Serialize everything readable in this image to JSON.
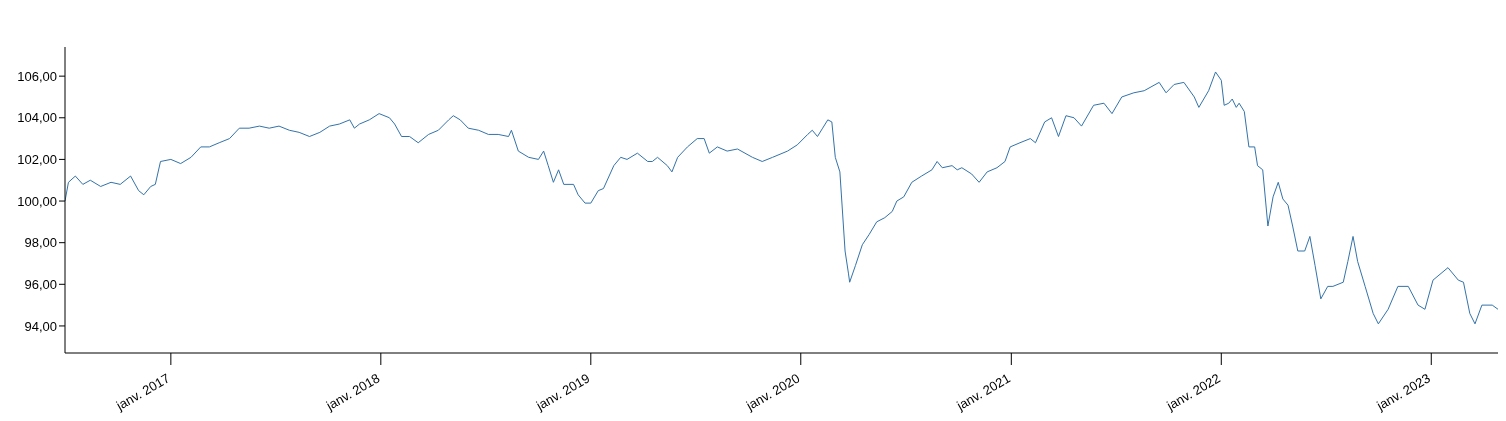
{
  "chart_data": {
    "type": "line",
    "x": [
      "2016-07-01",
      "2016-07-07",
      "2016-07-19",
      "2016-08-01",
      "2016-08-14",
      "2016-09-01",
      "2016-09-19",
      "2016-10-05",
      "2016-10-23",
      "2016-11-06",
      "2016-11-15",
      "2016-11-27",
      "2016-12-05",
      "2016-12-14",
      "2017-01-01",
      "2017-01-18",
      "2017-02-05",
      "2017-02-22",
      "2017-03-09",
      "2017-03-26",
      "2017-04-13",
      "2017-04-30",
      "2017-05-17",
      "2017-06-04",
      "2017-06-21",
      "2017-07-08",
      "2017-07-26",
      "2017-08-12",
      "2017-08-30",
      "2017-09-17",
      "2017-10-04",
      "2017-10-21",
      "2017-11-08",
      "2017-11-16",
      "2017-11-25",
      "2017-12-12",
      "2017-12-29",
      "2018-01-16",
      "2018-01-25",
      "2018-02-06",
      "2018-02-20",
      "2018-03-07",
      "2018-03-25",
      "2018-04-11",
      "2018-04-29",
      "2018-05-07",
      "2018-05-19",
      "2018-06-02",
      "2018-06-20",
      "2018-07-07",
      "2018-07-24",
      "2018-08-11",
      "2018-08-16",
      "2018-08-28",
      "2018-09-15",
      "2018-10-02",
      "2018-10-11",
      "2018-10-19",
      "2018-10-28",
      "2018-11-06",
      "2018-11-15",
      "2018-12-02",
      "2018-12-10",
      "2018-12-22",
      "2019-01-01",
      "2019-01-14",
      "2019-01-23",
      "2019-02-10",
      "2019-02-22",
      "2019-03-05",
      "2019-03-23",
      "2019-04-10",
      "2019-04-18",
      "2019-04-27",
      "2019-05-14",
      "2019-05-22",
      "2019-06-01",
      "2019-06-18",
      "2019-07-05",
      "2019-07-17",
      "2019-07-26",
      "2019-08-09",
      "2019-08-26",
      "2019-09-13",
      "2019-10-09",
      "2019-10-26",
      "2019-11-13",
      "2019-12-09",
      "2019-12-26",
      "2020-01-13",
      "2020-01-21",
      "2020-01-30",
      "2020-02-08",
      "2020-02-17",
      "2020-02-24",
      "2020-03-01",
      "2020-03-09",
      "2020-03-18",
      "2020-03-24",
      "2020-03-26",
      "2020-04-05",
      "2020-04-17",
      "2020-04-29",
      "2020-05-12",
      "2020-05-26",
      "2020-06-08",
      "2020-06-16",
      "2020-06-28",
      "2020-07-12",
      "2020-07-29",
      "2020-08-16",
      "2020-08-25",
      "2020-09-03",
      "2020-09-20",
      "2020-09-29",
      "2020-10-07",
      "2020-10-24",
      "2020-11-06",
      "2020-11-20",
      "2020-12-07",
      "2020-12-21",
      "2020-12-30",
      "2021-01-16",
      "2021-02-03",
      "2021-02-12",
      "2021-02-28",
      "2021-03-12",
      "2021-03-24",
      "2021-04-06",
      "2021-04-20",
      "2021-05-03",
      "2021-05-24",
      "2021-06-11",
      "2021-06-25",
      "2021-07-12",
      "2021-08-02",
      "2021-08-20",
      "2021-09-15",
      "2021-09-27",
      "2021-10-11",
      "2021-10-28",
      "2021-11-15",
      "2021-11-23",
      "2021-12-10",
      "2021-12-22",
      "2022-01-01",
      "2022-01-06",
      "2022-01-14",
      "2022-01-20",
      "2022-01-27",
      "2022-02-01",
      "2022-02-10",
      "2022-02-18",
      "2022-02-28",
      "2022-03-05",
      "2022-03-14",
      "2022-03-23",
      "2022-04-01",
      "2022-04-10",
      "2022-04-18",
      "2022-04-27",
      "2022-05-05",
      "2022-05-14",
      "2022-05-26",
      "2022-06-04",
      "2022-06-13",
      "2022-06-23",
      "2022-07-05",
      "2022-07-14",
      "2022-08-01",
      "2022-08-09",
      "2022-08-18",
      "2022-08-26",
      "2022-09-08",
      "2022-09-22",
      "2022-10-01",
      "2022-10-18",
      "2022-11-04",
      "2022-11-22",
      "2022-12-09",
      "2022-12-21",
      "2023-01-04",
      "2023-01-30",
      "2023-02-17",
      "2023-02-26",
      "2023-03-09",
      "2023-03-18",
      "2023-03-30",
      "2023-04-17",
      "2023-04-27"
    ],
    "series": [
      {
        "color": "#3373a9",
        "values": [
          100.0,
          100.9,
          101.2,
          100.8,
          101.0,
          100.7,
          100.9,
          100.8,
          101.2,
          100.5,
          100.3,
          100.7,
          100.8,
          101.9,
          102.0,
          101.8,
          102.1,
          102.6,
          102.6,
          102.8,
          103.0,
          103.5,
          103.5,
          103.6,
          103.5,
          103.6,
          103.4,
          103.3,
          103.1,
          103.3,
          103.6,
          103.7,
          103.9,
          103.5,
          103.7,
          103.9,
          104.2,
          104.0,
          103.7,
          103.1,
          103.1,
          102.8,
          103.2,
          103.4,
          103.9,
          104.1,
          103.9,
          103.5,
          103.4,
          103.2,
          103.2,
          103.1,
          103.4,
          102.4,
          102.1,
          102.0,
          102.4,
          101.7,
          100.9,
          101.5,
          100.8,
          100.8,
          100.3,
          99.9,
          99.9,
          100.5,
          100.6,
          101.7,
          102.1,
          102.0,
          102.3,
          101.9,
          101.9,
          102.1,
          101.7,
          101.4,
          102.1,
          102.6,
          103.0,
          103.0,
          102.3,
          102.6,
          102.4,
          102.5,
          102.1,
          101.9,
          102.1,
          102.4,
          102.7,
          103.2,
          103.4,
          103.1,
          103.5,
          103.9,
          103.8,
          102.1,
          101.4,
          97.6,
          96.5,
          96.1,
          96.9,
          97.9,
          98.4,
          99.0,
          99.2,
          99.5,
          100.0,
          100.2,
          100.9,
          101.2,
          101.5,
          101.9,
          101.6,
          101.7,
          101.5,
          101.6,
          101.3,
          100.9,
          101.4,
          101.6,
          101.9,
          102.6,
          102.8,
          103.0,
          102.8,
          103.8,
          104.0,
          103.1,
          104.1,
          104.0,
          103.6,
          104.6,
          104.7,
          104.2,
          105.0,
          105.2,
          105.3,
          105.7,
          105.2,
          105.6,
          105.7,
          105.0,
          104.5,
          105.3,
          106.2,
          105.8,
          104.6,
          104.7,
          104.9,
          104.5,
          104.7,
          104.3,
          102.6,
          102.6,
          101.7,
          101.5,
          98.8,
          100.2,
          100.9,
          100.1,
          99.8,
          98.8,
          97.6,
          97.6,
          98.3,
          96.9,
          95.3,
          95.9,
          95.9,
          96.1,
          97.1,
          98.3,
          97.1,
          95.9,
          94.6,
          94.1,
          94.8,
          95.9,
          95.9,
          95.0,
          94.8,
          96.2,
          96.8,
          96.2,
          96.1,
          94.6,
          94.1,
          95.0,
          95.0,
          94.8
        ]
      }
    ],
    "xlim": [
      "2016-07-01",
      "2023-04-27"
    ],
    "xticks": [
      {
        "value": "2017-01-01",
        "label": "janv. 2017"
      },
      {
        "value": "2018-01-01",
        "label": "janv. 2018"
      },
      {
        "value": "2019-01-01",
        "label": "janv. 2019"
      },
      {
        "value": "2020-01-01",
        "label": "janv. 2020"
      },
      {
        "value": "2021-01-01",
        "label": "janv. 2021"
      },
      {
        "value": "2022-01-01",
        "label": "janv. 2022"
      },
      {
        "value": "2023-01-01",
        "label": "janv. 2023"
      }
    ],
    "ylim": [
      92.7,
      107.4
    ],
    "yticks": [
      {
        "value": 94,
        "label": "94,00"
      },
      {
        "value": 96,
        "label": "96,00"
      },
      {
        "value": 98,
        "label": "98,00"
      },
      {
        "value": 100,
        "label": "100,00"
      },
      {
        "value": 102,
        "label": "102,00"
      },
      {
        "value": 104,
        "label": "104,00"
      },
      {
        "value": 106,
        "label": "106,00"
      }
    ],
    "grid": false,
    "legend": false,
    "marker": "none",
    "line_style": "solid"
  }
}
